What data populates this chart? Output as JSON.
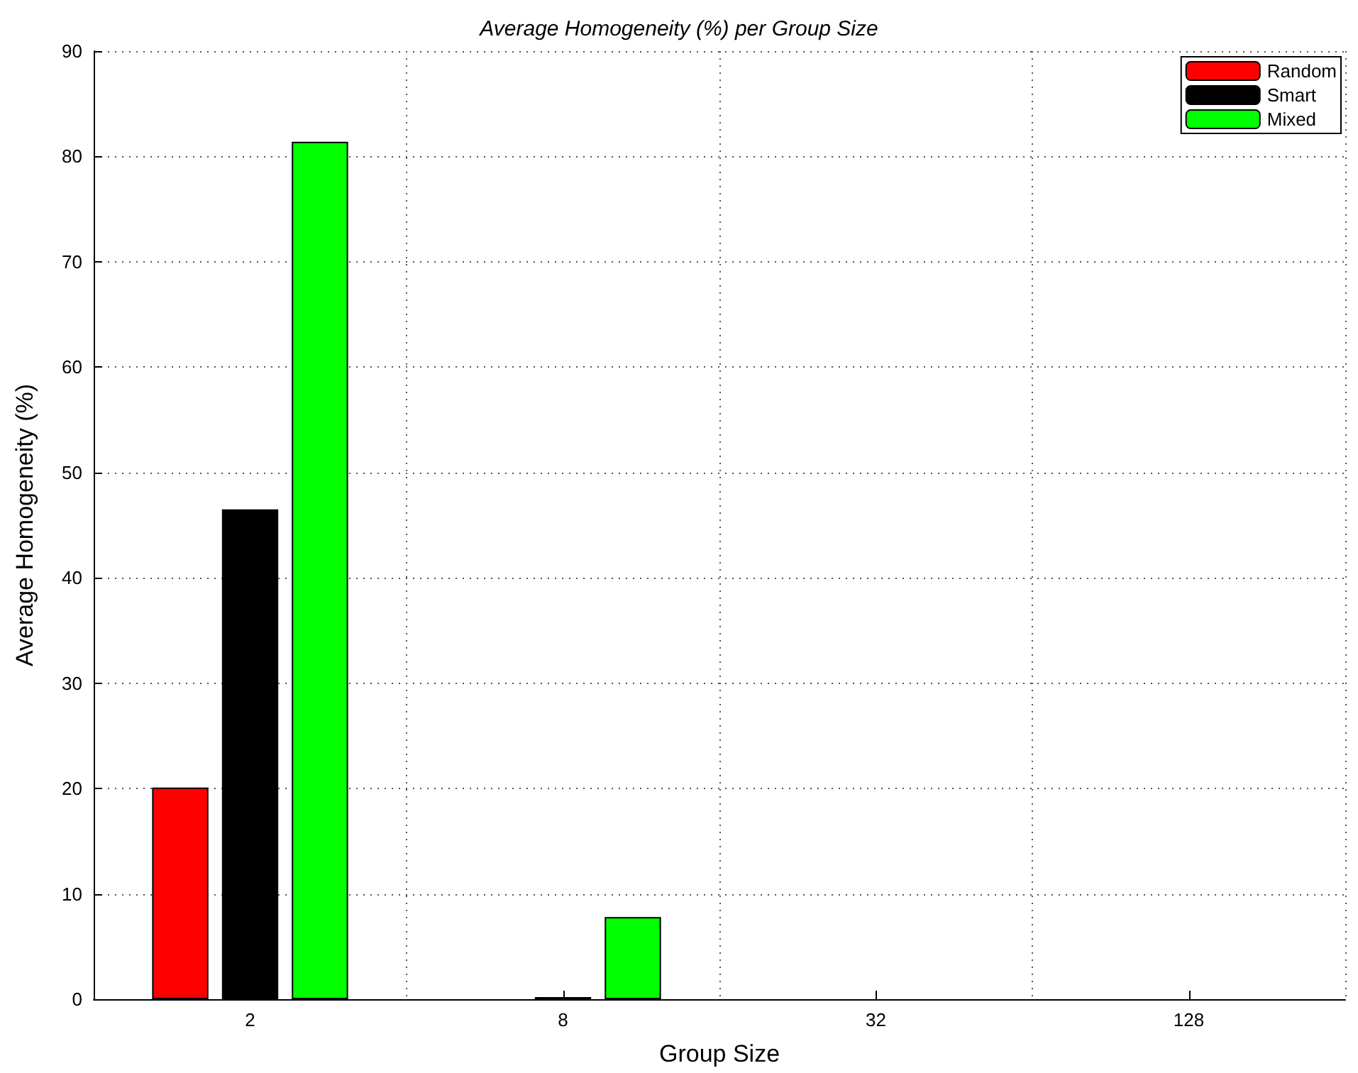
{
  "chart_data": {
    "type": "bar",
    "title": "Average Homogeneity (%) per Group Size",
    "xlabel": "Group Size",
    "ylabel": "Average Homogeneity (%)",
    "categories": [
      "2",
      "8",
      "32",
      "128"
    ],
    "series": [
      {
        "name": "Random",
        "color": "#ff0000",
        "values": [
          20.1,
          0,
          0,
          0
        ]
      },
      {
        "name": "Smart",
        "color": "#000000",
        "values": [
          46.5,
          0.2,
          0,
          0
        ]
      },
      {
        "name": "Mixed",
        "color": "#00ff00",
        "values": [
          81.4,
          7.8,
          0,
          0
        ]
      }
    ],
    "ylim": [
      0,
      90
    ],
    "yticks": [
      0,
      10,
      20,
      30,
      40,
      50,
      60,
      70,
      80,
      90
    ],
    "grid": true,
    "legend": "top right"
  }
}
